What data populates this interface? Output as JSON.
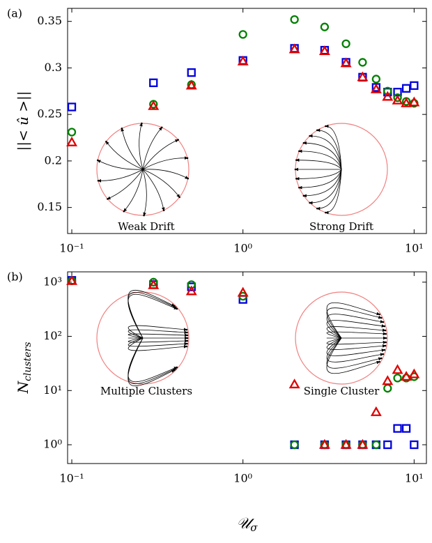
{
  "chart_data": [
    {
      "type": "scatter",
      "panel_label": "(a)",
      "ylabel": "||< û >||",
      "log_x": true,
      "xlim": [
        0.0945,
        11.8
      ],
      "ylim": [
        0.122,
        0.364
      ],
      "xticks": [
        {
          "value": 0.1,
          "label": "10⁻¹"
        },
        {
          "value": 1,
          "label": "10⁰"
        },
        {
          "value": 10,
          "label": "10¹"
        }
      ],
      "yticks": [
        0.15,
        0.2,
        0.25,
        0.3,
        0.35
      ],
      "x": [
        0.1,
        0.3,
        0.5,
        1,
        2,
        3,
        4,
        5,
        6,
        7,
        8,
        9,
        10
      ],
      "series": [
        {
          "color": "#0000dd",
          "marker": "square",
          "values": [
            0.258,
            0.284,
            0.295,
            0.308,
            0.321,
            0.319,
            0.306,
            0.29,
            0.279,
            0.274,
            0.274,
            0.278,
            0.281
          ]
        },
        {
          "color": "#008000",
          "marker": "circle",
          "values": [
            0.231,
            0.261,
            0.282,
            0.336,
            0.352,
            0.344,
            0.326,
            0.306,
            0.288,
            0.275,
            0.268,
            0.264,
            0.262
          ]
        },
        {
          "color": "#e00000",
          "marker": "triangle",
          "values": [
            0.22,
            0.259,
            0.281,
            0.307,
            0.32,
            0.318,
            0.305,
            0.29,
            0.277,
            0.269,
            0.265,
            0.262,
            0.263
          ]
        }
      ],
      "insets": [
        "Weak Drift",
        "Strong Drift"
      ]
    },
    {
      "type": "scatter",
      "panel_label": "(b)",
      "ylabel": "N",
      "ylabel_sub": "clusters",
      "xlabel": "𝒰",
      "xlabel_sub": "σ",
      "log_x": true,
      "log_y": true,
      "xlim": [
        0.0945,
        11.8
      ],
      "ylim": [
        0.45,
        1550
      ],
      "xticks": [
        {
          "value": 0.1,
          "label": "10⁻¹"
        },
        {
          "value": 1,
          "label": "10⁰"
        },
        {
          "value": 10,
          "label": "10¹"
        }
      ],
      "yticks": [
        {
          "value": 1,
          "label": "10⁰"
        },
        {
          "value": 10,
          "label": "10¹"
        },
        {
          "value": 100,
          "label": "10²"
        },
        {
          "value": 1000,
          "label": "10³"
        }
      ],
      "x": [
        0.1,
        0.3,
        0.5,
        1,
        2,
        3,
        4,
        5,
        6,
        7,
        8,
        9,
        10
      ],
      "series": [
        {
          "color": "#0000dd",
          "marker": "square",
          "values": [
            1080,
            900,
            820,
            480,
            1,
            1,
            1,
            1,
            1,
            1,
            2,
            2,
            1
          ]
        },
        {
          "color": "#008000",
          "marker": "circle",
          "values": [
            1060,
            1000,
            900,
            550,
            1,
            1,
            1,
            1,
            1,
            11,
            17,
            17,
            18
          ]
        },
        {
          "color": "#e00000",
          "marker": "triangle",
          "values": [
            1050,
            880,
            680,
            640,
            13,
            1,
            1,
            1,
            4,
            15,
            24,
            18,
            20
          ]
        }
      ],
      "insets": [
        "Multiple Clusters",
        "Single Cluster"
      ]
    }
  ]
}
